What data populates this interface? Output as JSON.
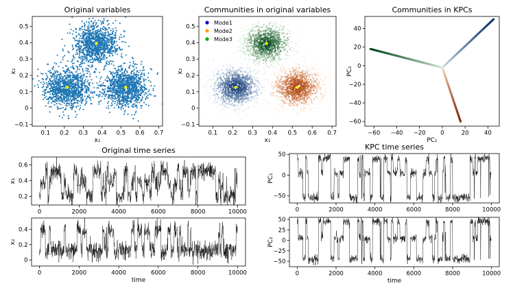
{
  "chart_data": [
    {
      "id": "p1",
      "type": "scatter",
      "title": "Original variables",
      "xlabel": "x₁",
      "ylabel": "x₂",
      "xlim": [
        0.03,
        0.72
      ],
      "ylim": [
        -0.11,
        0.56
      ],
      "xticks": [
        0.1,
        0.2,
        0.3,
        0.4,
        0.5,
        0.6,
        0.7
      ],
      "yticks": [
        -0.1,
        0.0,
        0.1,
        0.2,
        0.3,
        0.4,
        0.5
      ],
      "clusters": [
        {
          "center": [
            0.215,
            0.127
          ],
          "spread": [
            0.06,
            0.06
          ]
        },
        {
          "center": [
            0.37,
            0.395
          ],
          "spread": [
            0.06,
            0.06
          ]
        },
        {
          "center": [
            0.525,
            0.127
          ],
          "spread": [
            0.06,
            0.06
          ]
        }
      ],
      "centers": [
        [
          0.215,
          0.127
        ],
        [
          0.37,
          0.395
        ],
        [
          0.525,
          0.127
        ]
      ],
      "point_color": "#1f77b4",
      "center_color": "#ffff00"
    },
    {
      "id": "p2",
      "type": "scatter",
      "title": "Communities in original variables",
      "xlabel": "x₁",
      "ylabel": "x₂",
      "xlim": [
        0.03,
        0.72
      ],
      "ylim": [
        -0.11,
        0.56
      ],
      "xticks": [
        0.1,
        0.2,
        0.3,
        0.4,
        0.5,
        0.6,
        0.7
      ],
      "yticks": [
        -0.1,
        0.0,
        0.1,
        0.2,
        0.3,
        0.4,
        0.5
      ],
      "series": [
        {
          "name": "Mode1",
          "center": [
            0.215,
            0.127
          ],
          "spread": [
            0.06,
            0.06
          ],
          "color": "#08306b",
          "light": "#c6dbef"
        },
        {
          "name": "Mode2",
          "center": [
            0.525,
            0.127
          ],
          "spread": [
            0.06,
            0.06
          ],
          "color": "#a63603",
          "light": "#fdd0a2"
        },
        {
          "name": "Mode3",
          "center": [
            0.37,
            0.395
          ],
          "spread": [
            0.06,
            0.06
          ],
          "color": "#00441b",
          "light": "#c7e9c0"
        }
      ],
      "legend_colors": [
        "#0000cc",
        "#ff9900",
        "#00aa00"
      ],
      "legend_position": "top-left",
      "centers": [
        [
          0.215,
          0.127
        ],
        [
          0.37,
          0.395
        ],
        [
          0.525,
          0.127
        ]
      ],
      "center_color": "#ffff00"
    },
    {
      "id": "p3",
      "type": "line",
      "title": "Communities in KPCs",
      "xlabel": "PC₁",
      "ylabel": "PC₂",
      "xlim": [
        -68,
        50
      ],
      "ylim": [
        -65,
        53
      ],
      "xticks": [
        -60,
        -40,
        -20,
        0,
        20,
        40
      ],
      "yticks": [
        -60,
        -40,
        -20,
        0,
        20,
        40
      ],
      "origin": [
        0,
        -2
      ],
      "arms": [
        {
          "end": [
            45,
            50
          ],
          "dark": "#08306b",
          "light": "#deebf7"
        },
        {
          "end": [
            16,
            -60
          ],
          "dark": "#7f2704",
          "light": "#fee6ce"
        },
        {
          "end": [
            -63,
            18
          ],
          "dark": "#00441b",
          "light": "#e5f5e0"
        }
      ]
    },
    {
      "id": "p4",
      "type": "line",
      "title": "Original time series",
      "xlabel": "",
      "ylabel": "x₁",
      "xlim": [
        -400,
        10400
      ],
      "ylim": [
        0.09,
        0.7
      ],
      "xticks": [
        0,
        2000,
        4000,
        6000,
        8000,
        10000
      ],
      "yticks": [
        0.2,
        0.4,
        0.6
      ],
      "levels": [
        0.215,
        0.37,
        0.525
      ],
      "noise": 0.06,
      "n": 1000,
      "seed": 11
    },
    {
      "id": "p5",
      "type": "line",
      "title": "",
      "xlabel": "time",
      "ylabel": "x₂",
      "xlim": [
        -400,
        10400
      ],
      "ylim": [
        -0.08,
        0.55
      ],
      "xticks": [
        0,
        2000,
        4000,
        6000,
        8000,
        10000
      ],
      "yticks": [
        0.0,
        0.2,
        0.4
      ],
      "levels": [
        0.127,
        0.395,
        0.127
      ],
      "noise": 0.06,
      "n": 1000,
      "seed": 11
    },
    {
      "id": "p6",
      "type": "line",
      "title": "KPC time series",
      "xlabel": "",
      "ylabel": "PC₁",
      "xlim": [
        -400,
        10400
      ],
      "ylim": [
        -67,
        52
      ],
      "xticks": [
        0,
        2000,
        4000,
        6000,
        8000,
        10000
      ],
      "yticks": [
        -50,
        0,
        50
      ],
      "levels": [
        40,
        5,
        -55
      ],
      "noise": 5,
      "n": 1000,
      "seed": 11
    },
    {
      "id": "p7",
      "type": "line",
      "title": "",
      "xlabel": "time",
      "ylabel": "PC₂",
      "xlim": [
        -400,
        10400
      ],
      "ylim": [
        -63,
        55
      ],
      "xticks": [
        0,
        2000,
        4000,
        6000,
        8000,
        10000
      ],
      "yticks": [
        -50,
        -25,
        0,
        25,
        50
      ],
      "levels": [
        45,
        5,
        -45
      ],
      "noise": 5,
      "n": 1000,
      "seed": 11
    }
  ]
}
